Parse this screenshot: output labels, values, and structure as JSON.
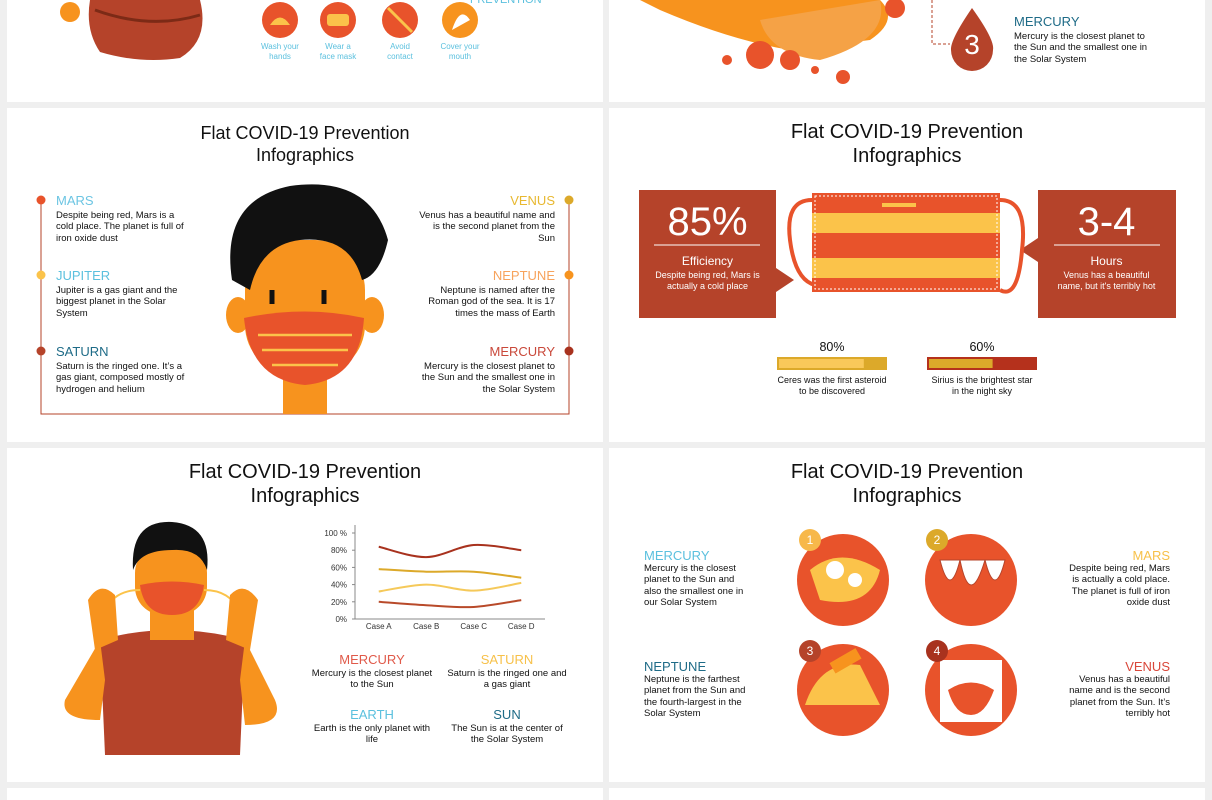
{
  "slides": {
    "top_left": {
      "heading": "PREVENTION",
      "icons": [
        "Wash your hands",
        "Wear a face mask",
        "Avoid contact",
        "Cover your mouth"
      ]
    },
    "top_right": {
      "number": "3",
      "name": "MERCURY",
      "text": "Mercury is the closest planet to the Sun and the smallest one in the Solar System"
    },
    "planets": {
      "title": "Flat COVID-19 Prevention Infographics",
      "left": [
        {
          "name": "MARS",
          "text": "Despite being red, Mars is a cold place. The planet is full of iron oxide dust"
        },
        {
          "name": "JUPITER",
          "text": "Jupiter is a gas giant and the biggest planet in the Solar System"
        },
        {
          "name": "SATURN",
          "text": "Saturn is the ringed one. It’s a gas giant, composed mostly of hydrogen and helium"
        }
      ],
      "right": [
        {
          "name": "VENUS",
          "text": "Venus has a beautiful name and is the second planet from the Sun"
        },
        {
          "name": "NEPTUNE",
          "text": "Neptune is named after the Roman god of the sea. It is 17 times the mass of Earth"
        },
        {
          "name": "MERCURY",
          "text": "Mercury is the closest planet to the Sun and the smallest one in the Solar System"
        }
      ]
    },
    "mask": {
      "title": "Flat COVID-19 Prevention Infographics",
      "left": {
        "figure": "85%",
        "label": "Efficiency",
        "text": "Despite being red, Mars is actually a cold place"
      },
      "right": {
        "figure": "3-4",
        "label": "Hours",
        "text": "Venus has a beautiful name, but it's terribly hot"
      },
      "progress": [
        {
          "value": 80,
          "label": "80%",
          "text": "Ceres was the first asteroid to be discovered"
        },
        {
          "value": 60,
          "label": "60%",
          "text": "Sirius is the brightest star in the night sky"
        }
      ]
    },
    "chart_slide": {
      "title": "Flat COVID-19 Prevention Infographics",
      "items": [
        {
          "name": "MERCURY",
          "text": "Mercury is the closest planet to the Sun"
        },
        {
          "name": "SATURN",
          "text": "Saturn is the ringed one and a gas giant"
        },
        {
          "name": "EARTH",
          "text": "Earth is the only planet with life"
        },
        {
          "name": "SUN",
          "text": "The Sun is at the center of the Solar System"
        }
      ]
    },
    "steps": {
      "title": "Flat COVID-19 Prevention Infographics",
      "numbers": [
        "1",
        "2",
        "3",
        "4"
      ],
      "items": [
        {
          "name": "MERCURY",
          "text": "Mercury is the closest planet to the Sun and also the smallest one in our Solar System"
        },
        {
          "name": "NEPTUNE",
          "text": "Neptune is the farthest planet from the Sun and the fourth-largest in the Solar System"
        },
        {
          "name": "MARS",
          "text": "Despite being red, Mars is actually a cold place. The planet is full of iron oxide dust"
        },
        {
          "name": "VENUS",
          "text": "Venus has a beautiful name and is the second planet from the Sun. It’s terribly hot"
        }
      ]
    }
  },
  "chart_data": {
    "type": "line",
    "categories": [
      "Case A",
      "Case B",
      "Case C",
      "Case D"
    ],
    "ylim": [
      0,
      100
    ],
    "yticks": [
      {
        "value": 0,
        "label": "0%"
      },
      {
        "value": 20,
        "label": "20%"
      },
      {
        "value": 40,
        "label": "40%"
      },
      {
        "value": 60,
        "label": "60%"
      },
      {
        "value": 80,
        "label": "80%"
      },
      {
        "value": 100,
        "label": "100 %"
      }
    ],
    "series": [
      {
        "color": "#a8321e",
        "values": [
          84,
          72,
          86,
          80
        ]
      },
      {
        "color": "#dca92a",
        "values": [
          58,
          55,
          55,
          48
        ]
      },
      {
        "color": "#f5c95a",
        "values": [
          32,
          40,
          33,
          42
        ]
      },
      {
        "color": "#b84a2a",
        "values": [
          20,
          16,
          14,
          22
        ]
      }
    ]
  }
}
